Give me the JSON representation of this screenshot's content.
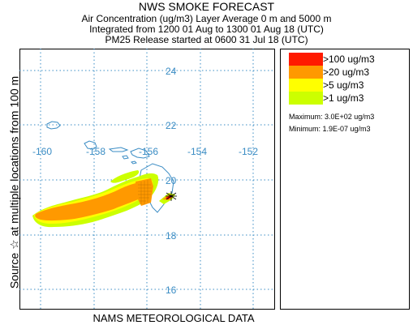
{
  "header": {
    "title": "NWS SMOKE FORECAST",
    "line2": "Air Concentration (ug/m3) Layer Average    0 m and  5000 m",
    "line3": "Integrated from 1200 01 Aug to 1300 01 Aug 18 (UTC)",
    "line4": "PM25 Release started at 0600 31 Jul 18 (UTC)"
  },
  "side_label": "Source ☆   at multiple locations       from  100 m",
  "footer": "NAMS METEOROLOGICAL DATA",
  "map": {
    "lat_labels": [
      "24",
      "22",
      "20",
      "18",
      "16"
    ],
    "lon_labels": [
      "-160",
      "-158",
      "-156",
      "-154",
      "-152"
    ],
    "grid_color": "#3a8cc4",
    "coast_color": "#3a8cc4"
  },
  "legend": {
    "items": [
      {
        "label": ">100 ug/m3",
        "color": "#ff1a00"
      },
      {
        "label": ">20 ug/m3",
        "color": "#ff9900"
      },
      {
        "label": ">5 ug/m3",
        "color": "#ffff00"
      },
      {
        "label": ">1 ug/m3",
        "color": "#ccff00"
      }
    ],
    "maximum": "Maximum: 3.0E+02 ug/m3",
    "minimum": "Minimum: 1.9E-07 ug/m3"
  }
}
